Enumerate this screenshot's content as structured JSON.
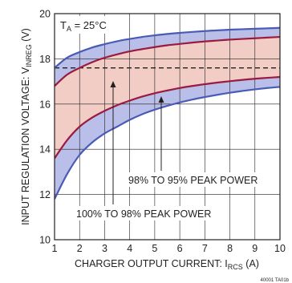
{
  "chart_data": {
    "type": "line",
    "title": "",
    "xlabel_main": "CHARGER OUTPUT CURRENT: I",
    "xlabel_sub": "RCS",
    "xlabel_unit": " (A)",
    "ylabel_main": "INPUT REGULATION VOLTAGE: V",
    "ylabel_sub": "INREG",
    "ylabel_unit": " (V)",
    "xlim": [
      1,
      10
    ],
    "ylim": [
      10,
      20
    ],
    "xticks": [
      "1",
      "2",
      "3",
      "4",
      "5",
      "6",
      "7",
      "8",
      "9",
      "10"
    ],
    "yticks": [
      "10",
      "12",
      "14",
      "16",
      "18",
      "20"
    ],
    "grid": true,
    "ta_label_main": "T",
    "ta_label_sub": "A",
    "ta_label_rest": " = 25°C",
    "annotations": [
      "98% TO 95% PEAK POWER",
      "100% TO 98% PEAK POWER"
    ],
    "watermark": "40001 TA01b",
    "dashed_line": {
      "y": 17.6
    },
    "x": [
      1.0,
      1.5,
      2.0,
      2.5,
      3.0,
      3.5,
      4.0,
      4.5,
      5.0,
      5.5,
      6.0,
      6.5,
      7.0,
      7.5,
      8.0,
      8.5,
      9.0,
      9.5,
      10.0
    ],
    "series": [
      {
        "role": "outer-upper",
        "values": [
          17.6,
          18.05,
          18.3,
          18.5,
          18.65,
          18.78,
          18.88,
          18.97,
          19.04,
          19.1,
          19.15,
          19.19,
          19.23,
          19.26,
          19.29,
          19.31,
          19.33,
          19.35,
          19.37
        ]
      },
      {
        "role": "inner-upper",
        "values": [
          16.8,
          17.3,
          17.6,
          17.85,
          18.05,
          18.2,
          18.33,
          18.43,
          18.52,
          18.6,
          18.66,
          18.72,
          18.77,
          18.81,
          18.85,
          18.88,
          18.91,
          18.94,
          18.97
        ]
      },
      {
        "role": "inner-lower",
        "values": [
          13.6,
          14.4,
          15.0,
          15.4,
          15.7,
          15.95,
          16.15,
          16.33,
          16.48,
          16.6,
          16.71,
          16.8,
          16.88,
          16.95,
          17.01,
          17.07,
          17.12,
          17.16,
          17.2
        ]
      },
      {
        "role": "outer-lower",
        "values": [
          11.8,
          12.9,
          13.75,
          14.3,
          14.7,
          15.0,
          15.3,
          15.55,
          15.75,
          15.92,
          16.07,
          16.2,
          16.31,
          16.41,
          16.5,
          16.58,
          16.65,
          16.71,
          16.76
        ]
      }
    ],
    "colors": {
      "outer_line": "#4a5bb5",
      "inner_line": "#9a1b3f",
      "outer_band": "#b9bfe8",
      "inner_band": "#f1cdc5",
      "grid": "#231f20",
      "dash": "#231f20"
    }
  }
}
